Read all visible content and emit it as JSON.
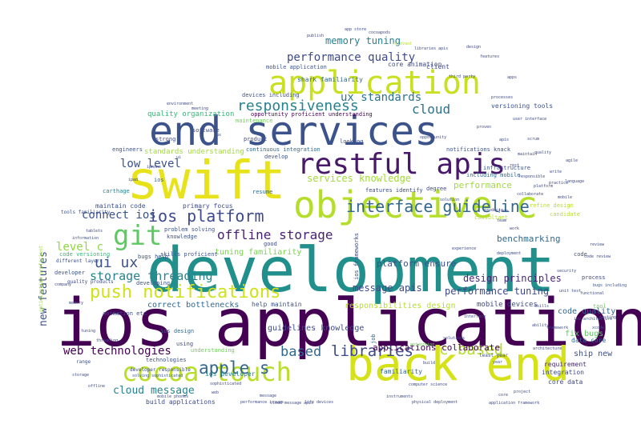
{
  "cloud": {
    "words": [
      {
        "text": "ios application",
        "color": "#440154"
      },
      {
        "text": "development",
        "color": "#21908c"
      },
      {
        "text": "end services",
        "color": "#3b528b"
      },
      {
        "text": "swift",
        "color": "#e8e21b"
      },
      {
        "text": "back end",
        "color": "#d5e21a"
      },
      {
        "text": "application",
        "color": "#c8e020"
      },
      {
        "text": "objective c",
        "color": "#b5de2b"
      },
      {
        "text": "restful apis",
        "color": "#48186a"
      },
      {
        "text": "cocoa touch",
        "color": "#b8de29"
      },
      {
        "text": "git",
        "color": "#5ec962"
      },
      {
        "text": "push notifications",
        "color": "#d0e11c"
      },
      {
        "text": "interface guideline",
        "color": "#31688e"
      },
      {
        "text": "ios platform",
        "color": "#3e4a89"
      },
      {
        "text": "responsiveness",
        "color": "#26828e"
      },
      {
        "text": "apple s",
        "color": "#31688e"
      },
      {
        "text": "libraries",
        "color": "#3e4989"
      },
      {
        "text": "c based",
        "color": "#b5de2b"
      },
      {
        "text": "based",
        "color": "#31688e"
      },
      {
        "text": "performance quality",
        "color": "#3e4a89"
      },
      {
        "text": "ui ux",
        "color": "#3b528b"
      },
      {
        "text": "offline storage",
        "color": "#482173"
      },
      {
        "text": "web technologies",
        "color": "#440154"
      },
      {
        "text": "ux standards",
        "color": "#2c728e"
      },
      {
        "text": "cloud",
        "color": "#2c728e"
      },
      {
        "text": "low level",
        "color": "#3b528b"
      },
      {
        "text": "storage threading",
        "color": "#26828e"
      },
      {
        "text": "services knowledge",
        "color": "#a2da37"
      },
      {
        "text": "design principles",
        "color": "#482878"
      },
      {
        "text": "memory tuning",
        "color": "#277f8e"
      },
      {
        "text": "new features",
        "color": "#3b528b"
      },
      {
        "text": "connect ios",
        "color": "#3b528b"
      },
      {
        "text": "cloud message",
        "color": "#26828e"
      },
      {
        "text": "message apis",
        "color": "#3e4a89"
      },
      {
        "text": "performance tuning",
        "color": "#3e4989"
      },
      {
        "text": "platform ensure",
        "color": "#3b528b"
      },
      {
        "text": "applications collaborate",
        "color": "#440154"
      },
      {
        "text": "performance",
        "color": "#9fda3a"
      },
      {
        "text": "level c",
        "color": "#8fd744"
      },
      {
        "text": "benchmarking",
        "color": "#31688e"
      },
      {
        "text": "responsibilities design",
        "color": "#b5de2b"
      },
      {
        "text": "guidelines knowledge",
        "color": "#3e4a89"
      },
      {
        "text": "correct bottlenecks",
        "color": "#31688e"
      },
      {
        "text": "tuning familiarity",
        "color": "#7ad151"
      },
      {
        "text": "code quality",
        "color": "#31688e"
      },
      {
        "text": "mobile devices",
        "color": "#3e4a89"
      },
      {
        "text": "quality organization",
        "color": "#35b779"
      },
      {
        "text": "standards understanding",
        "color": "#a0da39"
      },
      {
        "text": "fix bugs",
        "color": "#5ec962"
      },
      {
        "text": "ship new",
        "color": "#3b528b"
      },
      {
        "text": "data core",
        "color": "#31688e"
      },
      {
        "text": "ios developer",
        "color": "#26828e"
      },
      {
        "text": "build applications",
        "color": "#3e4a89"
      },
      {
        "text": "familiarity",
        "color": "#31688e"
      },
      {
        "text": "integration",
        "color": "#3e4a89"
      },
      {
        "text": "requirement",
        "color": "#482878"
      },
      {
        "text": "core data",
        "color": "#3e4a89"
      },
      {
        "text": "help maintain",
        "color": "#3b528b"
      },
      {
        "text": "maintain code",
        "color": "#3b528b"
      },
      {
        "text": "primary focus",
        "color": "#3e4a89"
      },
      {
        "text": "versioning tools",
        "color": "#3b528b"
      },
      {
        "text": "core animation",
        "color": "#3e4a89"
      },
      {
        "text": "shark familiarity",
        "color": "#31688e"
      },
      {
        "text": "mobile application",
        "color": "#3b528b"
      },
      {
        "text": "devices including",
        "color": "#3b528b"
      },
      {
        "text": "opportunity proficient understanding",
        "color": "#440154"
      },
      {
        "text": "software",
        "color": "#3e4a89"
      },
      {
        "text": "maintenance",
        "color": "#6ece58"
      },
      {
        "text": "notifications knack",
        "color": "#3b528b"
      },
      {
        "text": "continuous integration",
        "color": "#31688e"
      },
      {
        "text": "features identify",
        "color": "#3e4a89"
      },
      {
        "text": "including mobile",
        "color": "#31688e"
      },
      {
        "text": "infrastructure",
        "color": "#3b528b"
      },
      {
        "text": "client",
        "color": "#3e4989"
      },
      {
        "text": "engineers",
        "color": "#3b528b"
      },
      {
        "text": "product",
        "color": "#3e4a89"
      },
      {
        "text": "looking",
        "color": "#3b528b"
      },
      {
        "text": "develop",
        "color": "#3b528b"
      },
      {
        "text": "resume",
        "color": "#31688e"
      },
      {
        "text": "degree",
        "color": "#3e4a89"
      },
      {
        "text": "ios",
        "color": "#31688e"
      },
      {
        "text": "carthage",
        "color": "#26828e"
      },
      {
        "text": "knowledge",
        "color": "#3b528b"
      },
      {
        "text": "bugs help",
        "color": "#3b528b"
      },
      {
        "text": "problem solving",
        "color": "#3b528b"
      },
      {
        "text": "skills proficient",
        "color": "#3b528b"
      },
      {
        "text": "developing",
        "color": "#3b528b"
      },
      {
        "text": "quality products",
        "color": "#3e4a89"
      },
      {
        "text": "code versioning",
        "color": "#35b779"
      },
      {
        "text": "different layers",
        "color": "#3b528b"
      },
      {
        "text": "developer",
        "color": "#3b528b"
      },
      {
        "text": "animation etc",
        "color": "#3e4a89"
      },
      {
        "text": "ios design",
        "color": "#31688e"
      },
      {
        "text": "understanding",
        "color": "#6ece58"
      },
      {
        "text": "technologies",
        "color": "#3b528b"
      },
      {
        "text": "developer responsible",
        "color": "#3e4989"
      },
      {
        "text": "solving sophisticated",
        "color": "#3b528b"
      },
      {
        "text": "tools familiarity",
        "color": "#3b528b"
      },
      {
        "text": "process",
        "color": "#3e4a89"
      },
      {
        "text": "tool",
        "color": "#6ece58"
      },
      {
        "text": "least year",
        "color": "#3b528b"
      },
      {
        "text": "consultant",
        "color": "#b5de2b"
      },
      {
        "text": "refine design",
        "color": "#b5de2b"
      },
      {
        "text": "candidate",
        "color": "#b5de2b"
      },
      {
        "text": "code",
        "color": "#3b528b"
      },
      {
        "text": "ios frameworks",
        "color": "#3e4a89"
      },
      {
        "text": "optimization proficient",
        "color": "#a0da39"
      },
      {
        "text": "using",
        "color": "#3e4a89"
      },
      {
        "text": "job",
        "color": "#31688e"
      },
      {
        "text": "range",
        "color": "#3b528b"
      },
      {
        "text": "strong",
        "color": "#3e4a89"
      },
      {
        "text": "good",
        "color": "#3e4a89"
      },
      {
        "text": "bugs including",
        "color": "#3b528b"
      },
      {
        "text": "sophisticated",
        "color": "#3e4a89"
      },
      {
        "text": "mobile phones",
        "color": "#3e4a89"
      },
      {
        "text": "computer science",
        "color": "#3e4a89"
      },
      {
        "text": "physical deployment",
        "color": "#3e4a89"
      },
      {
        "text": "life devices",
        "color": "#3e4a89"
      },
      {
        "text": "performance issues",
        "color": "#3e4a89"
      },
      {
        "text": "core",
        "color": "#3e4a89"
      },
      {
        "text": "information",
        "color": "#3b528b"
      },
      {
        "text": "deployment",
        "color": "#3e4a89"
      },
      {
        "text": "application framework",
        "color": "#3e4a89"
      },
      {
        "text": "networking",
        "color": "#6ece58"
      },
      {
        "text": "language",
        "color": "#3e4a89"
      },
      {
        "text": "environment",
        "color": "#3e4a89"
      },
      {
        "text": "instruments",
        "color": "#3e4a89"
      },
      {
        "text": "relevant",
        "color": "#b5de2b"
      },
      {
        "text": "meeting",
        "color": "#3e4a89"
      },
      {
        "text": "apps",
        "color": "#3e4a89"
      },
      {
        "text": "year",
        "color": "#3b528b"
      },
      {
        "text": "proven",
        "color": "#3e4a89"
      },
      {
        "text": "opportunity",
        "color": "#3e4a89"
      },
      {
        "text": "team",
        "color": "#3e4a89"
      },
      {
        "text": "work",
        "color": "#3e4a89"
      },
      {
        "text": "experience",
        "color": "#3e4a89"
      },
      {
        "text": "company",
        "color": "#3e4a89"
      },
      {
        "text": "security",
        "color": "#3e4a89"
      },
      {
        "text": "ios architecture",
        "color": "#3b528b"
      },
      {
        "text": "review",
        "color": "#3e4a89"
      },
      {
        "text": "functional",
        "color": "#3e4a89"
      },
      {
        "text": "code review",
        "color": "#3e4a89"
      },
      {
        "text": "interface",
        "color": "#3e4a89"
      },
      {
        "text": "solutions",
        "color": "#3e4a89"
      },
      {
        "text": "build",
        "color": "#3e4a89"
      },
      {
        "text": "ability",
        "color": "#3e4a89"
      },
      {
        "text": "architecture",
        "color": "#3e4a89"
      },
      {
        "text": "project",
        "color": "#3e4a89"
      },
      {
        "text": "framework",
        "color": "#3e4a89"
      },
      {
        "text": "unit test",
        "color": "#3e4a89"
      },
      {
        "text": "skills",
        "color": "#3e4a89"
      },
      {
        "text": "testing",
        "color": "#3e4a89"
      },
      {
        "text": "xcode",
        "color": "#3e4a89"
      },
      {
        "text": "collaborate",
        "color": "#3e4a89"
      },
      {
        "text": "solution",
        "color": "#3e4a89"
      },
      {
        "text": "products",
        "color": "#3e4a89"
      },
      {
        "text": "platform",
        "color": "#3e4a89"
      },
      {
        "text": "mobile",
        "color": "#3e4a89"
      },
      {
        "text": "write",
        "color": "#3e4a89"
      },
      {
        "text": "maintain",
        "color": "#3e4a89"
      },
      {
        "text": "apis",
        "color": "#3e4a89"
      },
      {
        "text": "design",
        "color": "#3e4a89"
      },
      {
        "text": "features",
        "color": "#3e4a89"
      },
      {
        "text": "user interface",
        "color": "#3e4a89"
      },
      {
        "text": "quality",
        "color": "#3e4a89"
      },
      {
        "text": "processes",
        "color": "#3e4a89"
      },
      {
        "text": "responsible",
        "color": "#3e4a89"
      },
      {
        "text": "practice",
        "color": "#3e4a89"
      },
      {
        "text": "agile",
        "color": "#3e4a89"
      },
      {
        "text": "scrum",
        "color": "#3e4a89"
      },
      {
        "text": "json",
        "color": "#3e4a89"
      },
      {
        "text": "rest",
        "color": "#3e4a89"
      },
      {
        "text": "third party",
        "color": "#3e4a89"
      },
      {
        "text": "libraries apis",
        "color": "#3e4a89"
      },
      {
        "text": "cocoapods",
        "color": "#3e4a89"
      },
      {
        "text": "app store",
        "color": "#3e4a89"
      },
      {
        "text": "publish",
        "color": "#3e4a89"
      },
      {
        "text": "ux",
        "color": "#3e4a89"
      },
      {
        "text": "ui",
        "color": "#3e4a89"
      },
      {
        "text": "ipad",
        "color": "#3e4a89"
      },
      {
        "text": "iphone",
        "color": "#3e4a89"
      },
      {
        "text": "tablets",
        "color": "#3e4a89"
      },
      {
        "text": "memory",
        "color": "#3e4a89"
      },
      {
        "text": "tuning",
        "color": "#3e4a89"
      },
      {
        "text": "threading",
        "color": "#3e4a89"
      },
      {
        "text": "storage",
        "color": "#3e4a89"
      },
      {
        "text": "offline",
        "color": "#3e4a89"
      },
      {
        "text": "web",
        "color": "#3e4a89"
      },
      {
        "text": "message",
        "color": "#3e4a89"
      },
      {
        "text": "cloud message apis",
        "color": "#3e4a89"
      }
    ]
  }
}
